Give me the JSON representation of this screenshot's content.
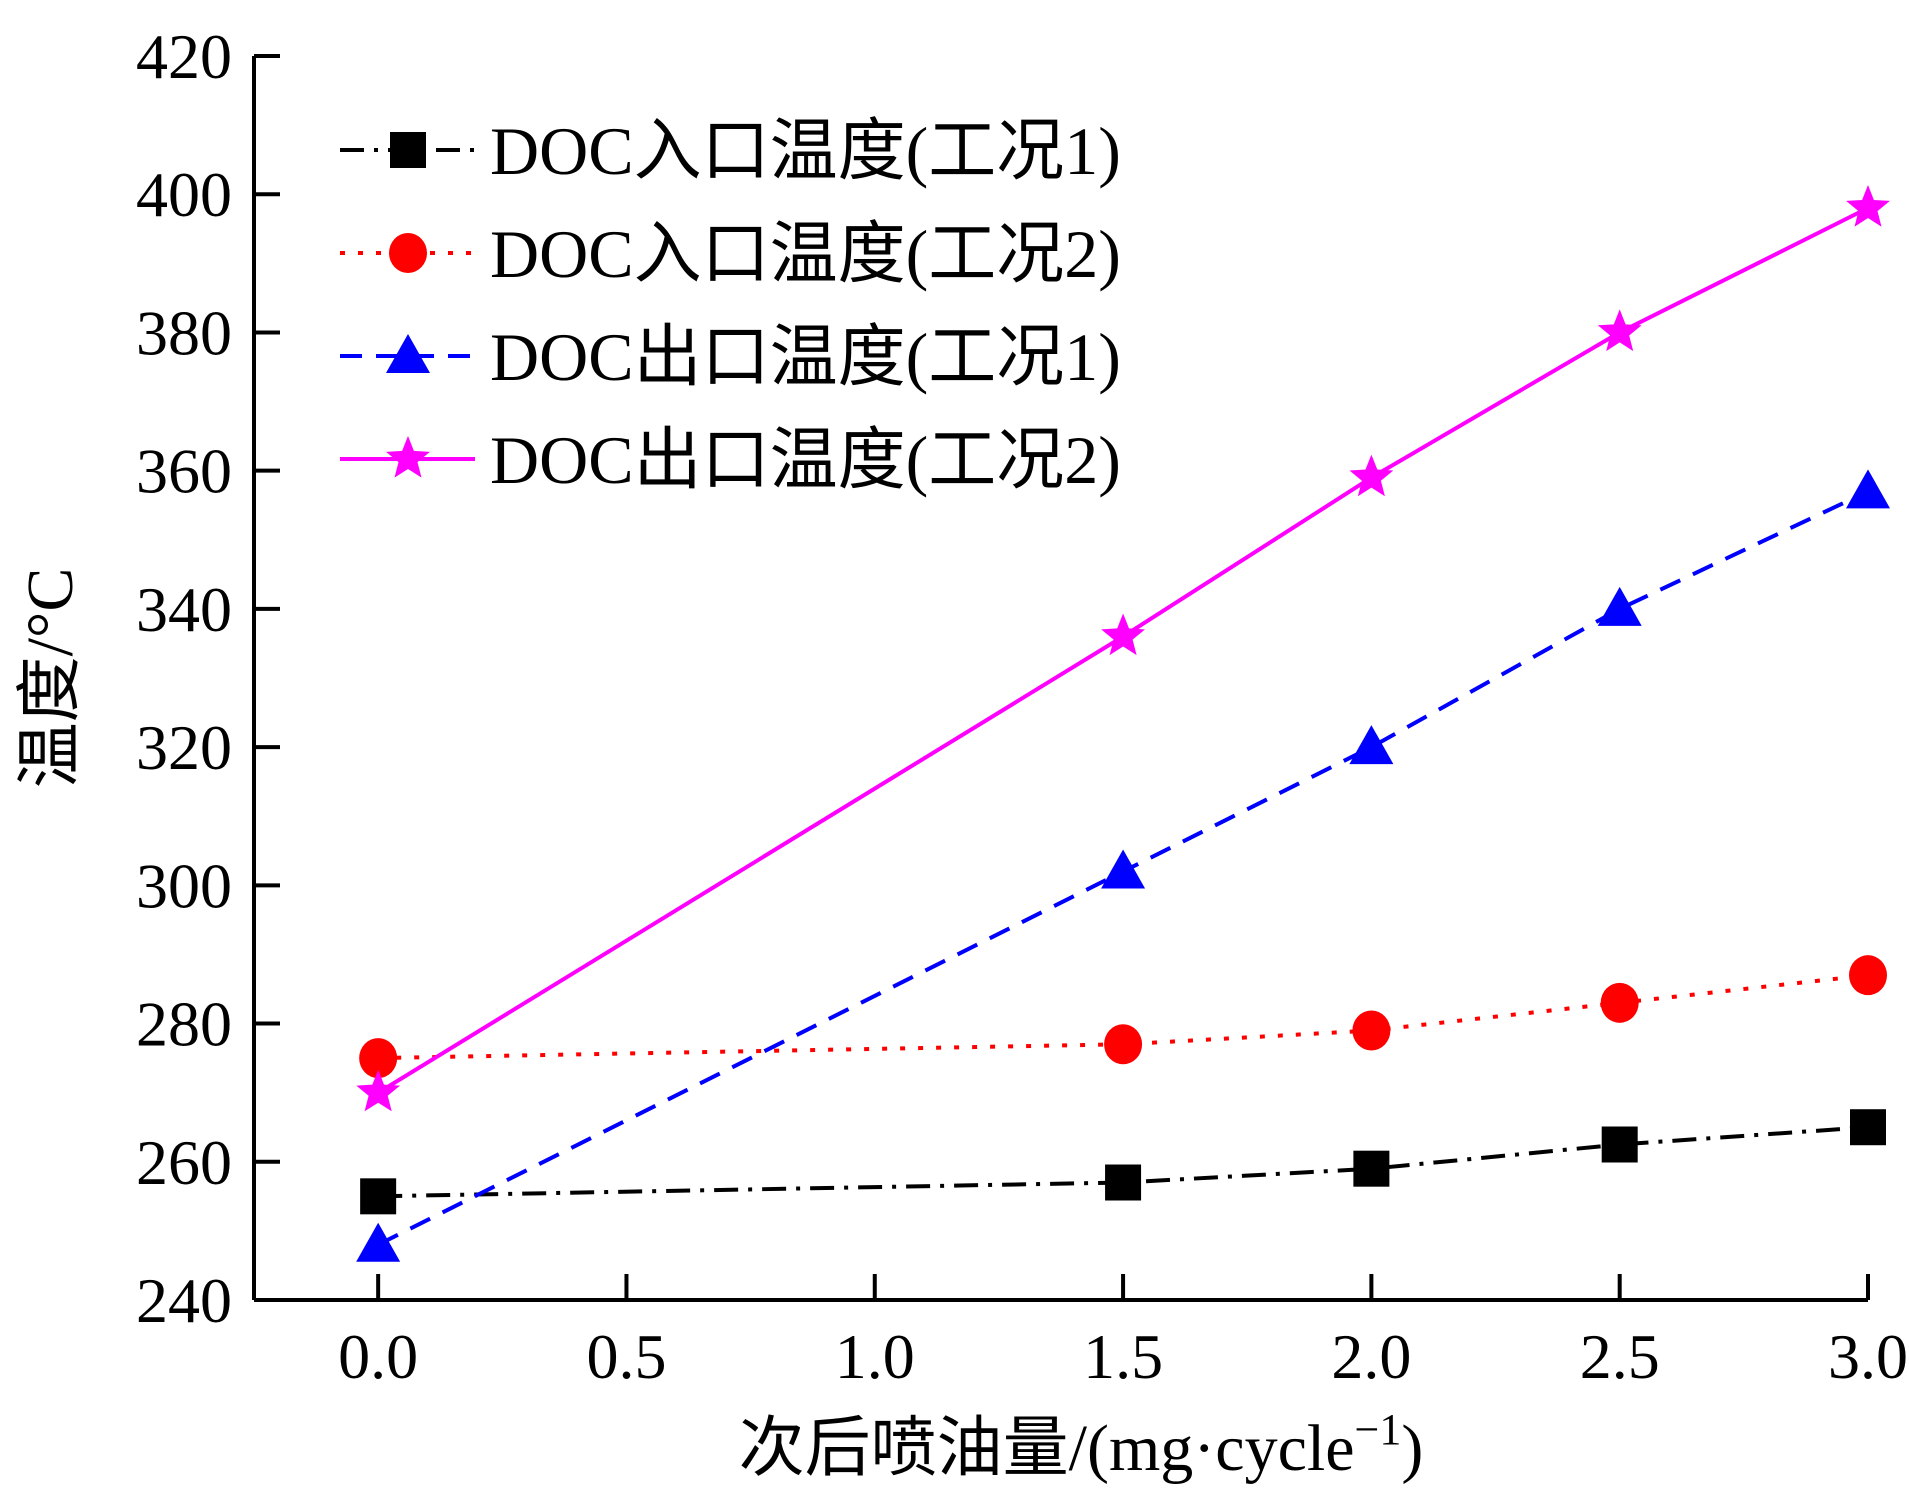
{
  "chart_data": {
    "type": "line",
    "title": "",
    "xlabel_main": "次后喷油量/(mg·cycle",
    "xlabel_sup": "−1",
    "xlabel_close": ")",
    "ylabel": "温度/°C",
    "xlim": [
      -0.25,
      3.0
    ],
    "ylim": [
      240,
      420
    ],
    "xticks": [
      "0.0",
      "0.5",
      "1.0",
      "1.5",
      "2.0",
      "2.5",
      "3.0"
    ],
    "xtick_values": [
      0.0,
      0.5,
      1.0,
      1.5,
      2.0,
      2.5,
      3.0
    ],
    "yticks": [
      "240",
      "260",
      "280",
      "300",
      "320",
      "340",
      "360",
      "380",
      "400",
      "420"
    ],
    "ytick_values": [
      240,
      260,
      280,
      300,
      320,
      340,
      360,
      380,
      400,
      420
    ],
    "grid": false,
    "legend_position": "top-left",
    "x": [
      0.0,
      1.5,
      2.0,
      2.5,
      3.0
    ],
    "series": [
      {
        "name": "DOC入口温度(工况1)",
        "values": [
          255,
          257,
          259,
          262.5,
          265
        ],
        "color": "#000000",
        "dash": "dashdot",
        "marker": "square"
      },
      {
        "name": "DOC入口温度(工况2)",
        "values": [
          275,
          277,
          279,
          283,
          287
        ],
        "color": "#ff0000",
        "dash": "dot",
        "marker": "circle"
      },
      {
        "name": "DOC出口温度(工况1)",
        "values": [
          248,
          302,
          320,
          340,
          357
        ],
        "color": "#0000ff",
        "dash": "dash",
        "marker": "triangle"
      },
      {
        "name": "DOC出口温度(工况2)",
        "values": [
          270,
          336,
          359,
          380,
          398
        ],
        "color": "#ff00ff",
        "dash": "solid",
        "marker": "star"
      }
    ]
  }
}
